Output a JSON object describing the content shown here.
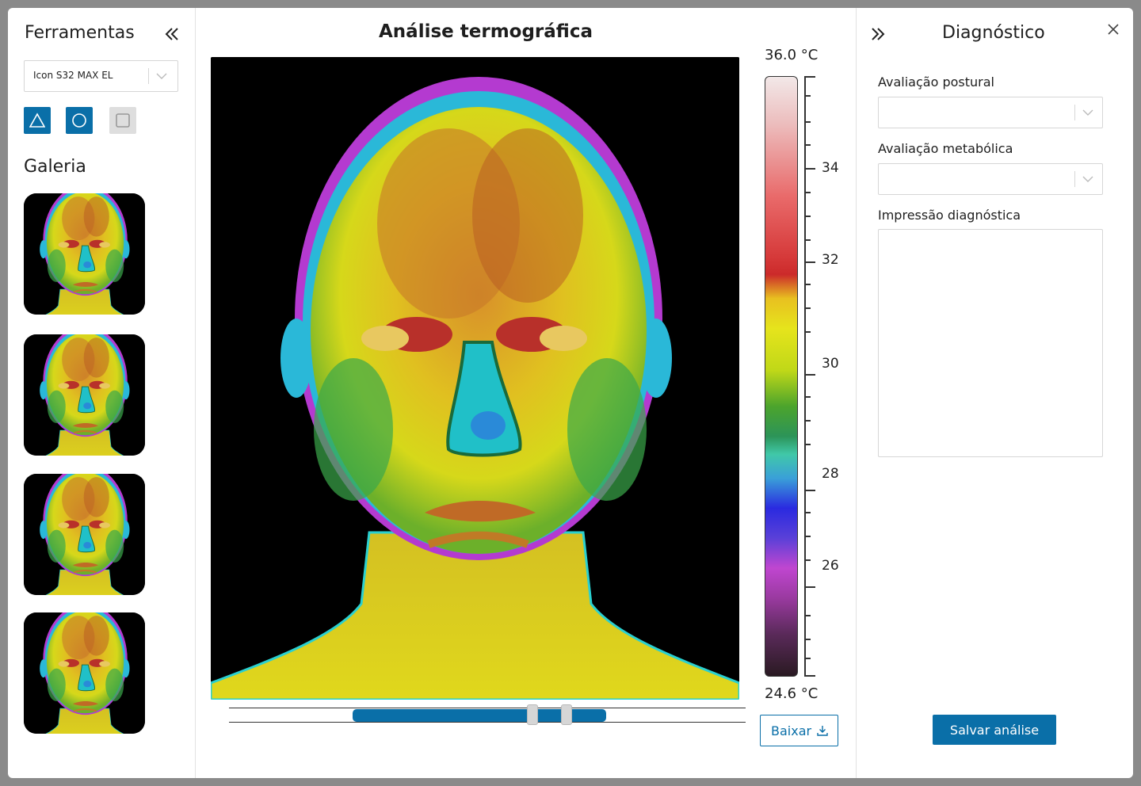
{
  "colors": {
    "accent": "#0a6fa8",
    "disabled": "#dedede",
    "border": "#d6d6d6"
  },
  "left_panel": {
    "title": "Ferramentas",
    "collapse_icon": "double-chevron-left-icon",
    "device_select": {
      "value": "Icon S32 MAX EL"
    },
    "tools": [
      {
        "name": "triangle-tool",
        "icon": "triangle-icon",
        "state": "active"
      },
      {
        "name": "circle-tool",
        "icon": "circle-icon",
        "state": "active"
      },
      {
        "name": "square-tool",
        "icon": "square-icon",
        "state": "disabled"
      }
    ],
    "gallery_title": "Galeria",
    "gallery_count": 4
  },
  "center": {
    "title": "Análise termográfica",
    "scale": {
      "max_label": "36.0 °C",
      "min_label": "24.6 °C",
      "ticks": [
        "34",
        "32",
        "30",
        "28",
        "26"
      ]
    },
    "range_slider": {
      "fill_start": 0.24,
      "fill_end": 0.73,
      "handle_low": 0.588,
      "handle_high": 0.654
    },
    "download_label": "Baixar"
  },
  "right_panel": {
    "title": "Diagnóstico",
    "postural_label": "Avaliação postural",
    "postural_value": "",
    "metabolic_label": "Avaliação metabólica",
    "metabolic_value": "",
    "impression_label": "Impressão diagnóstica",
    "impression_value": "",
    "save_label": "Salvar análise"
  }
}
